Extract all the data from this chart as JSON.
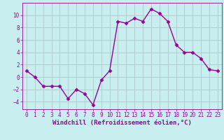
{
  "x": [
    0,
    1,
    2,
    3,
    4,
    5,
    6,
    7,
    8,
    9,
    10,
    11,
    12,
    13,
    14,
    15,
    16,
    17,
    18,
    19,
    20,
    21,
    22,
    23
  ],
  "y": [
    1.0,
    0.0,
    -1.5,
    -1.5,
    -1.5,
    -3.5,
    -2.0,
    -2.7,
    -4.5,
    -0.5,
    1.0,
    9.0,
    8.7,
    9.5,
    9.0,
    11.0,
    10.3,
    9.0,
    5.2,
    4.0,
    4.0,
    3.0,
    1.2,
    1.0
  ],
  "color": "#990099",
  "bg_color": "#c8eef0",
  "grid_color": "#b0c8c8",
  "xlabel": "Windchill (Refroidissement éolien,°C)",
  "xlim": [
    -0.5,
    23.5
  ],
  "ylim": [
    -5.2,
    12.0
  ],
  "yticks": [
    -4,
    -2,
    0,
    2,
    4,
    6,
    8,
    10
  ],
  "xticks": [
    0,
    1,
    2,
    3,
    4,
    5,
    6,
    7,
    8,
    9,
    10,
    11,
    12,
    13,
    14,
    15,
    16,
    17,
    18,
    19,
    20,
    21,
    22,
    23
  ],
  "marker": "D",
  "markersize": 2.5,
  "linewidth": 1.0,
  "xlabel_fontsize": 6.5,
  "tick_fontsize": 5.5
}
